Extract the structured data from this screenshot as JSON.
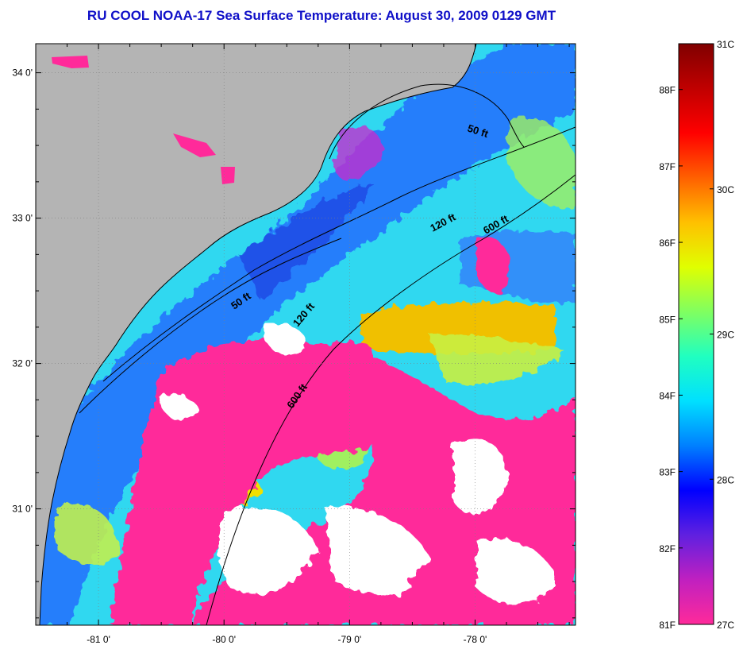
{
  "title": "RU COOL  NOAA-17  Sea Surface Temperature:  August 30, 2009 0129 GMT",
  "map": {
    "lat_ticks": [
      {
        "value": 34,
        "label": "34 0'"
      },
      {
        "value": 33,
        "label": "33 0'"
      },
      {
        "value": 32,
        "label": "32 0'"
      },
      {
        "value": 31,
        "label": "31 0'"
      }
    ],
    "lon_ticks": [
      {
        "value": -81,
        "label": "-81 0'"
      },
      {
        "value": -80,
        "label": "-80 0'"
      },
      {
        "value": -79,
        "label": "-79 0'"
      },
      {
        "value": -78,
        "label": "-78 0'"
      }
    ],
    "extent": {
      "lon_min": -81.5,
      "lon_max": -77.2,
      "lat_min": 30.2,
      "lat_max": 34.2
    },
    "contour_labels": [
      "50 ft",
      "120 ft",
      "600 ft",
      "50 ft",
      "120 ft",
      "600 ft"
    ],
    "colors": {
      "land": "#b4b4b4",
      "cloud": "#ffffff",
      "coastline": "#000000"
    }
  },
  "colorbar": {
    "fahrenheit_labels": [
      "88F",
      "87F",
      "86F",
      "85F",
      "84F",
      "83F",
      "82F",
      "81F"
    ],
    "celsius_labels": [
      "31C",
      "30C",
      "29C",
      "28C",
      "27C"
    ],
    "range_f": [
      81,
      88.6
    ],
    "range_c": [
      27,
      31
    ],
    "gradient": [
      "#ff2a9a",
      "#c020c0",
      "#6020e0",
      "#0000ff",
      "#0080ff",
      "#00e0ff",
      "#20ffc0",
      "#80ff60",
      "#e0ff00",
      "#ffc000",
      "#ff6000",
      "#ff0000",
      "#c00000",
      "#800000"
    ]
  }
}
